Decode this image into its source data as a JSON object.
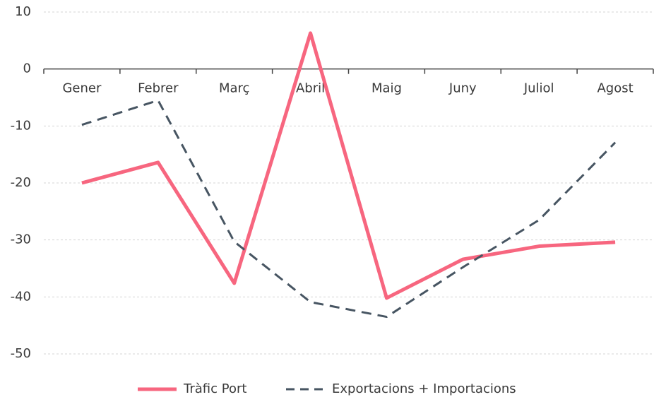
{
  "chart_data": {
    "type": "line",
    "categories": [
      "Gener",
      "Febrer",
      "Març",
      "Abril",
      "Maig",
      "Juny",
      "Juliol",
      "Agost"
    ],
    "series": [
      {
        "name": "Tràfic Port",
        "color": "#f7667f",
        "dash": false,
        "values": [
          -20,
          -16.4,
          -37.6,
          6.3,
          -40.2,
          -33.4,
          -31.1,
          -30.4
        ]
      },
      {
        "name": "Exportacions + Importacions",
        "color": "#475562",
        "dash": true,
        "values": [
          -9.8,
          -5.5,
          -30.3,
          -40.9,
          -43.5,
          -34.8,
          -26.5,
          -12.9
        ]
      }
    ],
    "ylim": [
      -50,
      10
    ],
    "yticks": [
      -50,
      -40,
      -30,
      -20,
      -10,
      0,
      10
    ],
    "grid": true,
    "legend": "bottom"
  }
}
